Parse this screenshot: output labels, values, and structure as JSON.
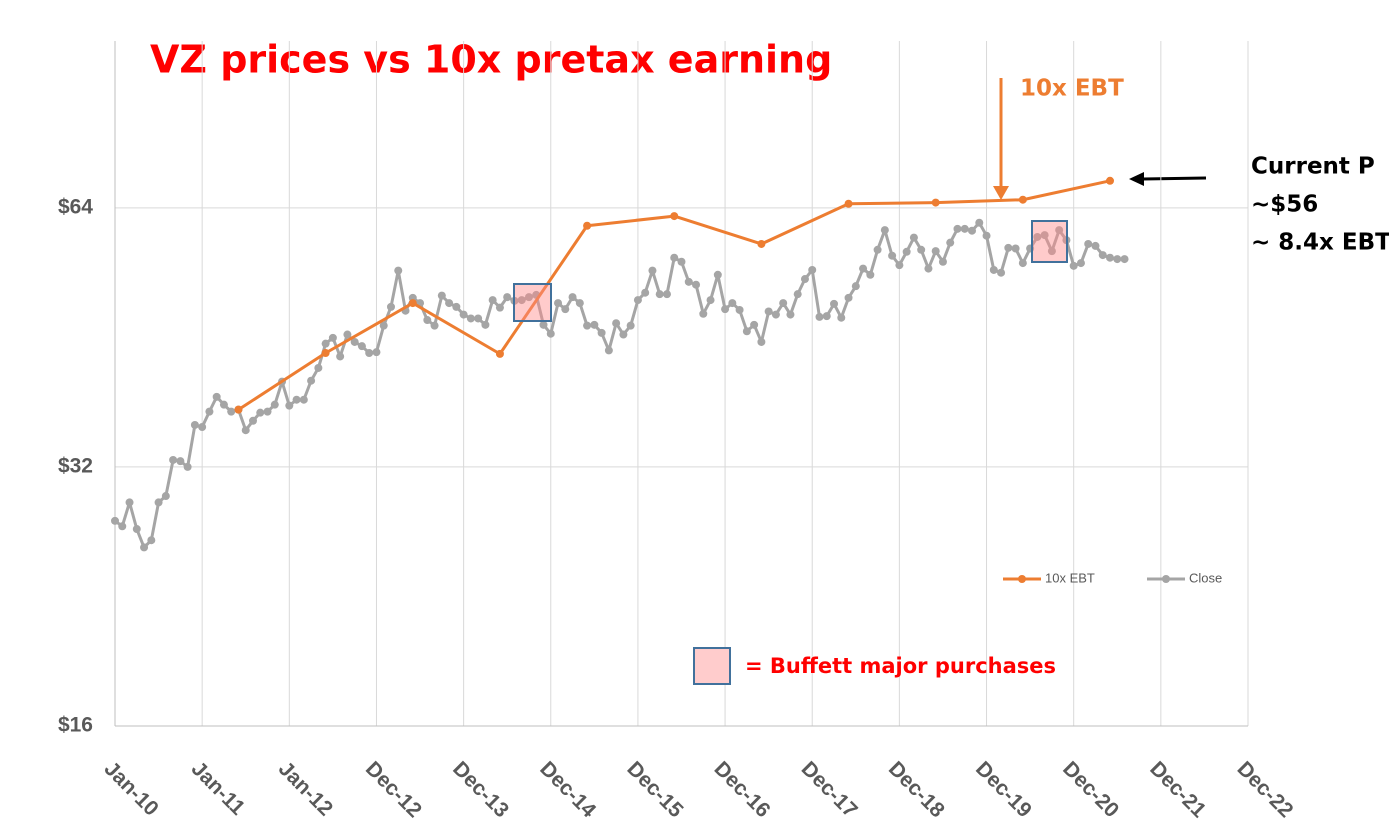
{
  "chart_data": {
    "type": "line",
    "title": "VZ prices vs 10x pretax earning",
    "annotations": {
      "ebt_arrow": "10x EBT",
      "current_1": "Current P",
      "current_2": "~$56",
      "current_3": "~ 8.4x EBT",
      "buffett": "= Buffett major purchases"
    },
    "x": [
      "Jan-10",
      "Feb-10",
      "Mar-10",
      "Apr-10",
      "May-10",
      "Jun-10",
      "Jul-10",
      "Aug-10",
      "Sep-10",
      "Oct-10",
      "Nov-10",
      "Dec-10",
      "Jan-11",
      "Feb-11",
      "Mar-11",
      "Apr-11",
      "May-11",
      "Jun-11",
      "Jul-11",
      "Aug-11",
      "Sep-11",
      "Oct-11",
      "Nov-11",
      "Dec-11",
      "Jan-12",
      "Feb-12",
      "Mar-12",
      "Apr-12",
      "May-12",
      "Jun-12",
      "Jul-12",
      "Aug-12",
      "Sep-12",
      "Oct-12",
      "Nov-12",
      "Dec-12",
      "Jan-13",
      "Feb-13",
      "Mar-13",
      "Apr-13",
      "May-13",
      "Jun-13",
      "Jul-13",
      "Aug-13",
      "Sep-13",
      "Oct-13",
      "Nov-13",
      "Dec-13",
      "Jan-14",
      "Feb-14",
      "Mar-14",
      "Apr-14",
      "May-14",
      "Jun-14",
      "Jul-14",
      "Aug-14",
      "Sep-14",
      "Oct-14",
      "Nov-14",
      "Dec-14",
      "Jan-15",
      "Feb-15",
      "Mar-15",
      "Apr-15",
      "May-15",
      "Jun-15",
      "Jul-15",
      "Aug-15",
      "Sep-15",
      "Oct-15",
      "Nov-15",
      "Dec-15",
      "Jan-16",
      "Feb-16",
      "Mar-16",
      "Apr-16",
      "May-16",
      "Jun-16",
      "Jul-16",
      "Aug-16",
      "Sep-16",
      "Oct-16",
      "Nov-16",
      "Dec-16",
      "Jan-17",
      "Feb-17",
      "Mar-17",
      "Apr-17",
      "May-17",
      "Jun-17",
      "Jul-17",
      "Aug-17",
      "Sep-17",
      "Oct-17",
      "Nov-17",
      "Dec-17",
      "Jan-18",
      "Feb-18",
      "Mar-18",
      "Apr-18",
      "May-18",
      "Jun-18",
      "Jul-18",
      "Aug-18",
      "Sep-18",
      "Oct-18",
      "Nov-18",
      "Dec-18",
      "Jan-19",
      "Feb-19",
      "Mar-19",
      "Apr-19",
      "May-19",
      "Jun-19",
      "Jul-19",
      "Aug-19",
      "Sep-19",
      "Oct-19",
      "Nov-19",
      "Dec-19",
      "Jan-20",
      "Feb-20",
      "Mar-20",
      "Apr-20",
      "May-20",
      "Jun-20",
      "Jul-20",
      "Aug-20",
      "Sep-20",
      "Oct-20",
      "Nov-20",
      "Dec-20",
      "Jan-21",
      "Feb-21",
      "Mar-21",
      "Apr-21",
      "May-21",
      "Jun-21",
      "Jul-21",
      "Aug-21"
    ],
    "series": [
      {
        "name": "10x EBT",
        "color": "#ed7d31",
        "x": [
          "Jun-11",
          "Jun-12",
          "Jun-13",
          "Jun-14",
          "Jun-15",
          "Jun-16",
          "Jun-17",
          "Jun-18",
          "Jun-19",
          "Jun-20",
          "Jun-21"
        ],
        "values": [
          37.3,
          43.4,
          49.6,
          43.3,
          61.0,
          62.6,
          58.1,
          64.7,
          64.9,
          65.4,
          68.8
        ]
      },
      {
        "name": "Close",
        "color": "#a5a5a5",
        "values": [
          27.7,
          27.3,
          29.1,
          27.1,
          25.8,
          26.3,
          29.1,
          29.6,
          32.6,
          32.5,
          32.0,
          35.8,
          35.6,
          37.1,
          38.6,
          37.8,
          37.1,
          37.3,
          35.3,
          36.2,
          37.0,
          37.1,
          37.8,
          40.2,
          37.7,
          38.3,
          38.3,
          40.3,
          41.7,
          44.5,
          45.2,
          43.0,
          45.6,
          44.7,
          44.2,
          43.4,
          43.5,
          46.7,
          49.1,
          54.1,
          48.6,
          50.3,
          49.6,
          47.4,
          46.7,
          50.6,
          49.6,
          49.1,
          48.1,
          47.6,
          47.6,
          46.8,
          50.0,
          49.0,
          50.4,
          49.9,
          50.0,
          50.4,
          50.7,
          46.8,
          45.7,
          49.6,
          48.8,
          50.4,
          49.6,
          46.7,
          46.8,
          45.8,
          43.7,
          47.0,
          45.6,
          46.7,
          50.0,
          51.0,
          54.1,
          50.8,
          50.8,
          56.0,
          55.4,
          52.5,
          52.1,
          48.2,
          50.0,
          53.5,
          48.8,
          49.6,
          48.7,
          46.0,
          46.8,
          44.7,
          48.5,
          48.1,
          49.6,
          48.1,
          50.8,
          52.9,
          54.2,
          47.8,
          47.9,
          49.5,
          47.7,
          50.3,
          51.9,
          54.4,
          53.5,
          57.2,
          60.3,
          56.3,
          54.9,
          56.9,
          59.1,
          57.2,
          54.4,
          57.0,
          55.4,
          58.3,
          60.5,
          60.5,
          60.2,
          61.5,
          59.4,
          54.2,
          53.8,
          57.5,
          57.4,
          55.2,
          57.4,
          59.2,
          59.5,
          57.0,
          60.3,
          58.7,
          54.8,
          55.2,
          58.1,
          57.8,
          56.4,
          56.0,
          55.8,
          55.8
        ]
      }
    ],
    "xticks": [
      "Jan-10",
      "Jan-11",
      "Jan-12",
      "Dec-12",
      "Dec-13",
      "Dec-14",
      "Dec-15",
      "Dec-16",
      "Dec-17",
      "Dec-18",
      "Dec-19",
      "Dec-20",
      "Dec-21",
      "Dec-22"
    ],
    "ylim": [
      16,
      100
    ],
    "log_y": true,
    "yticks": [
      {
        "value": 16,
        "label": "$16"
      },
      {
        "value": 32,
        "label": "$32"
      },
      {
        "value": 64,
        "label": "$64"
      }
    ],
    "grid": true,
    "legend": "lower-right"
  }
}
